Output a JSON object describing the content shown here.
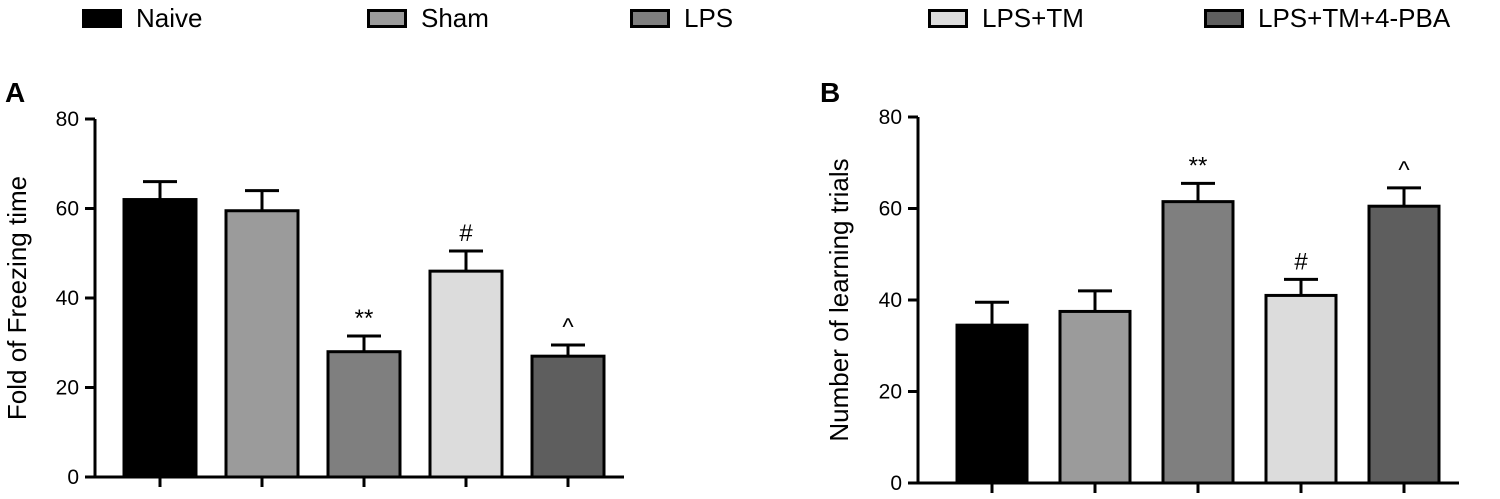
{
  "legend": [
    {
      "label": "Naive",
      "color": "#000000"
    },
    {
      "label": "Sham",
      "color": "#9b9b9b"
    },
    {
      "label": "LPS",
      "color": "#7f7f7f"
    },
    {
      "label": "LPS+TM",
      "color": "#dcdcdc"
    },
    {
      "label": "LPS+TM+4-PBA",
      "color": "#5e5e5e"
    }
  ],
  "chart_data": [
    {
      "type": "bar",
      "panel": "A",
      "categories": [
        "Naive",
        "Sham",
        "LPS",
        "LPS+TM",
        "LPS+TM+4-PBA"
      ],
      "values": [
        62,
        59.5,
        28,
        46,
        27
      ],
      "errors": [
        4,
        4.5,
        3.5,
        4.5,
        2.5
      ],
      "annotations": [
        "",
        "",
        "**",
        "#",
        "^"
      ],
      "colors": [
        "#000000",
        "#9b9b9b",
        "#7f7f7f",
        "#dcdcdc",
        "#5e5e5e"
      ],
      "ylabel": "Fold of Freezing time",
      "ylim": [
        0,
        80
      ],
      "yticks": [
        0,
        20,
        40,
        60,
        80
      ]
    },
    {
      "type": "bar",
      "panel": "B",
      "categories": [
        "Naive",
        "Sham",
        "LPS",
        "LPS+TM",
        "LPS+TM+4-PBA"
      ],
      "values": [
        34.5,
        37.5,
        61.5,
        41,
        60.5
      ],
      "errors": [
        5,
        4.5,
        4,
        3.5,
        4
      ],
      "annotations": [
        "",
        "",
        "**",
        "#",
        "^"
      ],
      "colors": [
        "#000000",
        "#9b9b9b",
        "#7f7f7f",
        "#dcdcdc",
        "#5e5e5e"
      ],
      "ylabel": "Number of learning trials",
      "ylim": [
        0,
        80
      ],
      "yticks": [
        0,
        20,
        40,
        60,
        80
      ]
    }
  ]
}
